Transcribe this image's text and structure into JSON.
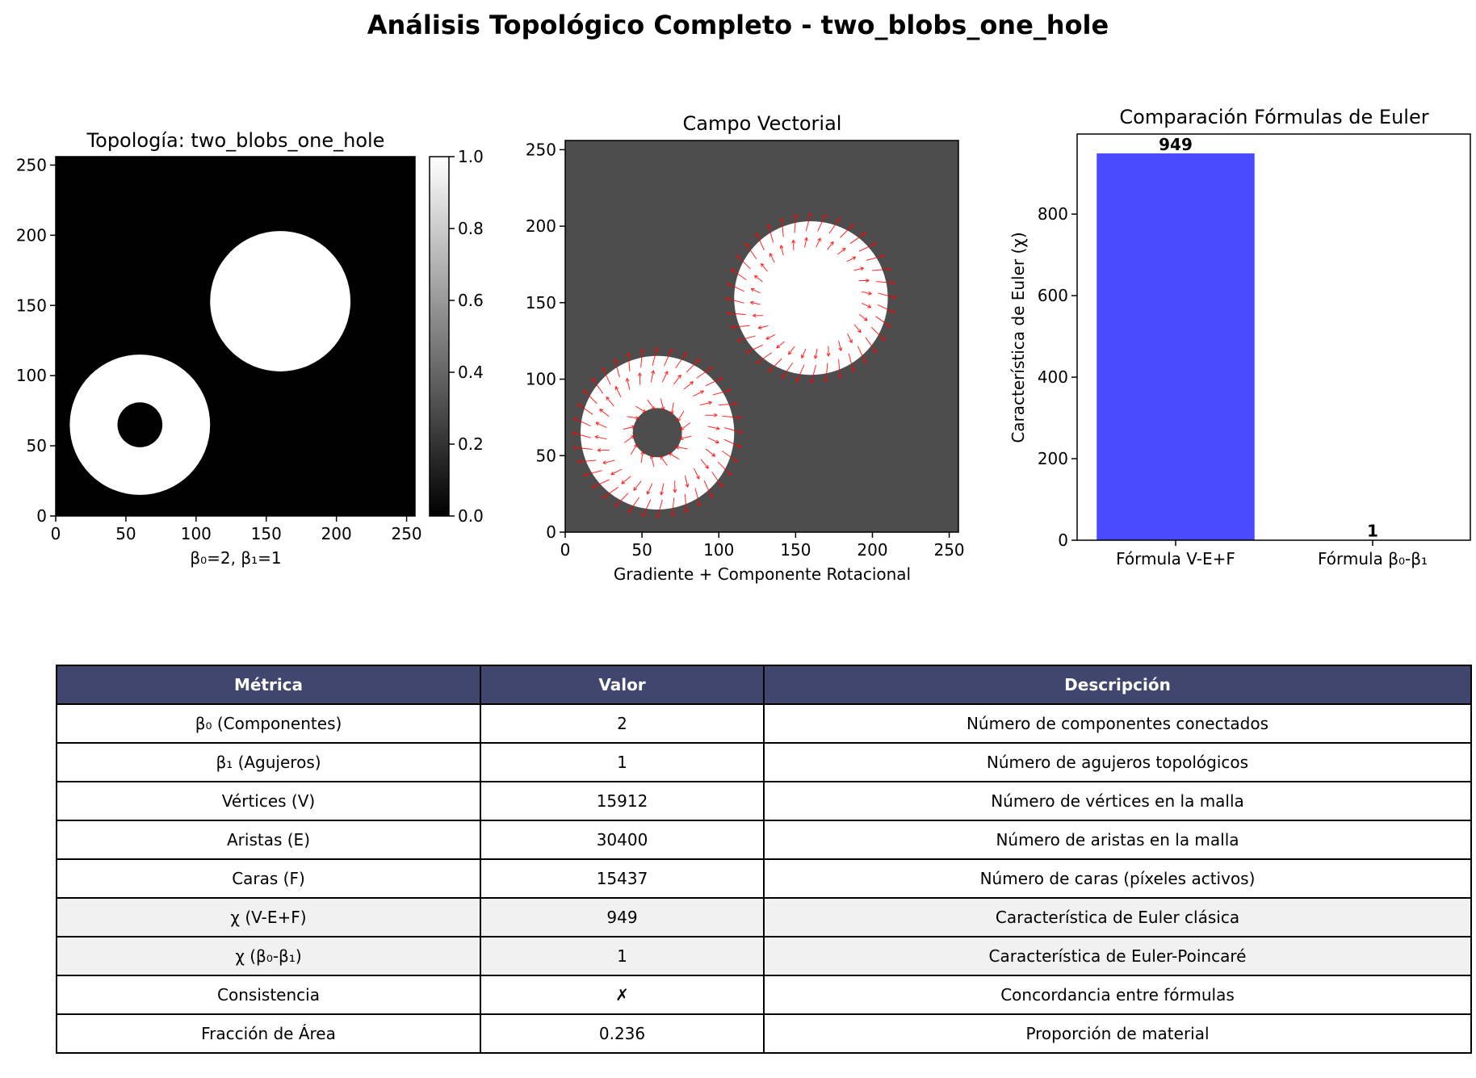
{
  "figure": {
    "title": "Análisis Topológico Completo - two_blobs_one_hole"
  },
  "panels": {
    "topology": {
      "title": "Topología: two_blobs_one_hole",
      "xlabel": "β₀=2, β₁=1",
      "xticks": [
        "0",
        "50",
        "100",
        "150",
        "200",
        "250"
      ],
      "yticks": [
        "0",
        "50",
        "100",
        "150",
        "200",
        "250"
      ],
      "colorbar_ticks": [
        "0.0",
        "0.2",
        "0.4",
        "0.6",
        "0.8",
        "1.0"
      ]
    },
    "vector": {
      "title": "Campo Vectorial",
      "xlabel": "Gradiente + Componente Rotacional",
      "xticks": [
        "0",
        "50",
        "100",
        "150",
        "200",
        "250"
      ],
      "yticks": [
        "0",
        "50",
        "100",
        "150",
        "200",
        "250"
      ]
    }
  },
  "chart_data": [
    {
      "type": "heatmap",
      "title": "Topología: two_blobs_one_hole",
      "xlabel": "β₀=2, β₁=1",
      "xlim": [
        0,
        256
      ],
      "ylim": [
        0,
        256
      ],
      "colormap": "gray",
      "colorbar_range": [
        0.0,
        1.0
      ],
      "shapes": [
        {
          "kind": "ring",
          "center": [
            60,
            65
          ],
          "outer_radius": 50,
          "inner_radius": 16
        },
        {
          "kind": "disk",
          "center": [
            160,
            153
          ],
          "radius": 50
        }
      ]
    },
    {
      "type": "heatmap",
      "title": "Campo Vectorial",
      "xlabel": "Gradiente + Componente Rotacional",
      "xlim": [
        0,
        256
      ],
      "ylim": [
        0,
        256
      ],
      "background_color": "#4d4d4d",
      "arrow_color": "#ff0000",
      "shapes": [
        {
          "kind": "ring",
          "center": [
            60,
            65
          ],
          "outer_radius": 50,
          "inner_radius": 16
        },
        {
          "kind": "disk",
          "center": [
            160,
            153
          ],
          "radius": 50
        }
      ]
    },
    {
      "type": "bar",
      "title": "Comparación Fórmulas de Euler",
      "ylabel": "Característica de Euler (χ)",
      "categories": [
        "Fórmula V-E+F",
        "Fórmula β₀-β₁"
      ],
      "values": [
        949,
        1
      ],
      "data_labels": [
        "949",
        "1"
      ],
      "bar_color": "#4a4aff",
      "ylim": [
        0,
        996.45
      ],
      "yticks": [
        "0",
        "200",
        "400",
        "600",
        "800"
      ]
    }
  ],
  "table": {
    "headers": [
      "Métrica",
      "Valor",
      "Descripción"
    ],
    "header_color": "#40466e",
    "rows": [
      {
        "metric": "β₀ (Componentes)",
        "value": "2",
        "desc": "Número de componentes conectados",
        "highlight": false
      },
      {
        "metric": "β₁ (Agujeros)",
        "value": "1",
        "desc": "Número de agujeros topológicos",
        "highlight": false
      },
      {
        "metric": "Vértices (V)",
        "value": "15912",
        "desc": "Número de vértices en la malla",
        "highlight": false
      },
      {
        "metric": "Aristas (E)",
        "value": "30400",
        "desc": "Número de aristas en la malla",
        "highlight": false
      },
      {
        "metric": "Caras (F)",
        "value": "15437",
        "desc": "Número de caras (píxeles activos)",
        "highlight": false
      },
      {
        "metric": "χ (V-E+F)",
        "value": "949",
        "desc": "Característica de Euler clásica",
        "highlight": true
      },
      {
        "metric": "χ (β₀-β₁)",
        "value": "1",
        "desc": "Característica de Euler-Poincaré",
        "highlight": true
      },
      {
        "metric": "Consistencia",
        "value": "✗",
        "desc": "Concordancia entre fórmulas",
        "highlight": false
      },
      {
        "metric": "Fracción de Área",
        "value": "0.236",
        "desc": "Proporción de material",
        "highlight": false
      }
    ]
  }
}
